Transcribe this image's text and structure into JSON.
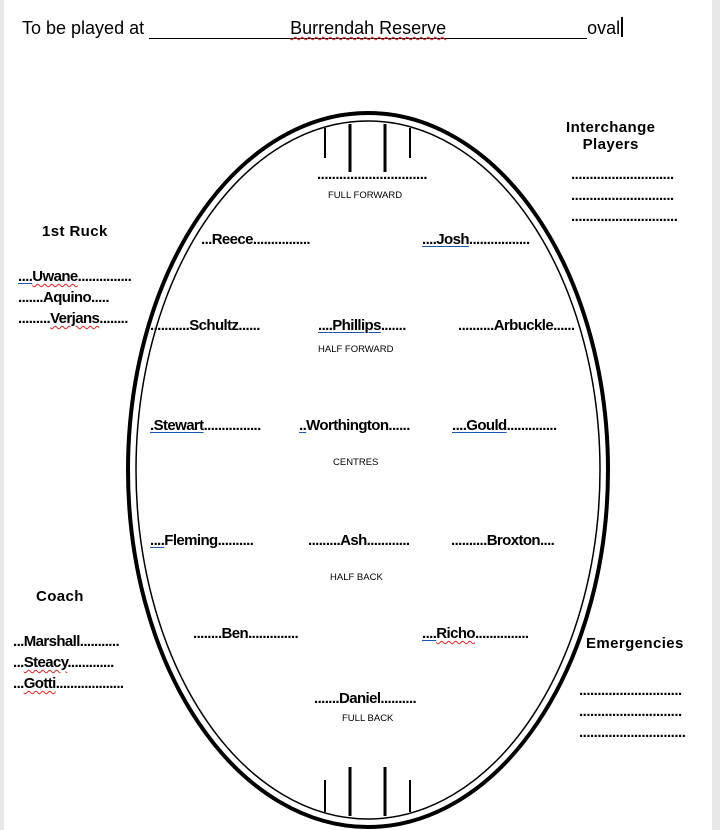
{
  "header": {
    "prefix": "To be played at",
    "venue": "Burrendah Reserve",
    "suffix": "oval"
  },
  "labels": {
    "full_forward": "FULL FORWARD",
    "half_forward": "HALF FORWARD",
    "centres": "CENTRES",
    "half_back": "HALF BACK",
    "full_back": "FULL BACK"
  },
  "positions": {
    "full_forward": "..............................",
    "forward_pocket_left": {
      "pre": "...",
      "name": "Reece",
      "post": "................"
    },
    "forward_pocket_right": {
      "pre": "....",
      "name": "Josh",
      "post": "................."
    },
    "half_forward_left": {
      "pre": "...........",
      "name": "Schultz",
      "post": "......"
    },
    "centre_half_forward": {
      "pre": "....",
      "name": "Phillips",
      "post": "......."
    },
    "half_forward_right": {
      "pre": "..........",
      "name": "Arbuckle",
      "post": "......"
    },
    "wing_left": {
      "pre": ".",
      "name": "Stewart",
      "post": "................"
    },
    "centre": {
      "pre": "..",
      "name": "Worthington",
      "post": "......"
    },
    "wing_right": {
      "pre": "....",
      "name": "Gould",
      "post": ".............."
    },
    "half_back_left": {
      "pre": "....",
      "name": "Fleming",
      "post": ".........."
    },
    "centre_half_back": {
      "pre": ".........",
      "name": "Ash",
      "post": "............"
    },
    "half_back_right": {
      "pre": "..........",
      "name": "Broxton",
      "post": "...."
    },
    "back_pocket_left": {
      "pre": "........",
      "name": "Ben",
      "post": ".............."
    },
    "back_pocket_right": {
      "pre": "....",
      "name": "Richo",
      "post": "..............."
    },
    "full_back": {
      "pre": ".......",
      "name": "Daniel",
      "post": ".........."
    }
  },
  "ruck": {
    "title": "1st Ruck",
    "players": [
      {
        "pre": "....",
        "name": "Uwane",
        "post": "..............."
      },
      {
        "pre": ".......",
        "name": "Aquino",
        "post": "....."
      },
      {
        "pre": ".........",
        "name": "Verjans",
        "post": "........"
      }
    ]
  },
  "interchange": {
    "title_line1": "Interchange",
    "title_line2": "Players",
    "lines": [
      "............................",
      "............................",
      "............................."
    ]
  },
  "coach": {
    "title": "Coach",
    "players": [
      {
        "pre": "...",
        "name": "Marshall",
        "post": "..........."
      },
      {
        "pre": "...",
        "name": "Steacy",
        "post": "............."
      },
      {
        "pre": "...",
        "name": "Gotti",
        "post": "..................."
      }
    ]
  },
  "emergencies": {
    "title": "Emergencies",
    "lines": [
      "............................",
      "............................",
      "............................."
    ]
  }
}
